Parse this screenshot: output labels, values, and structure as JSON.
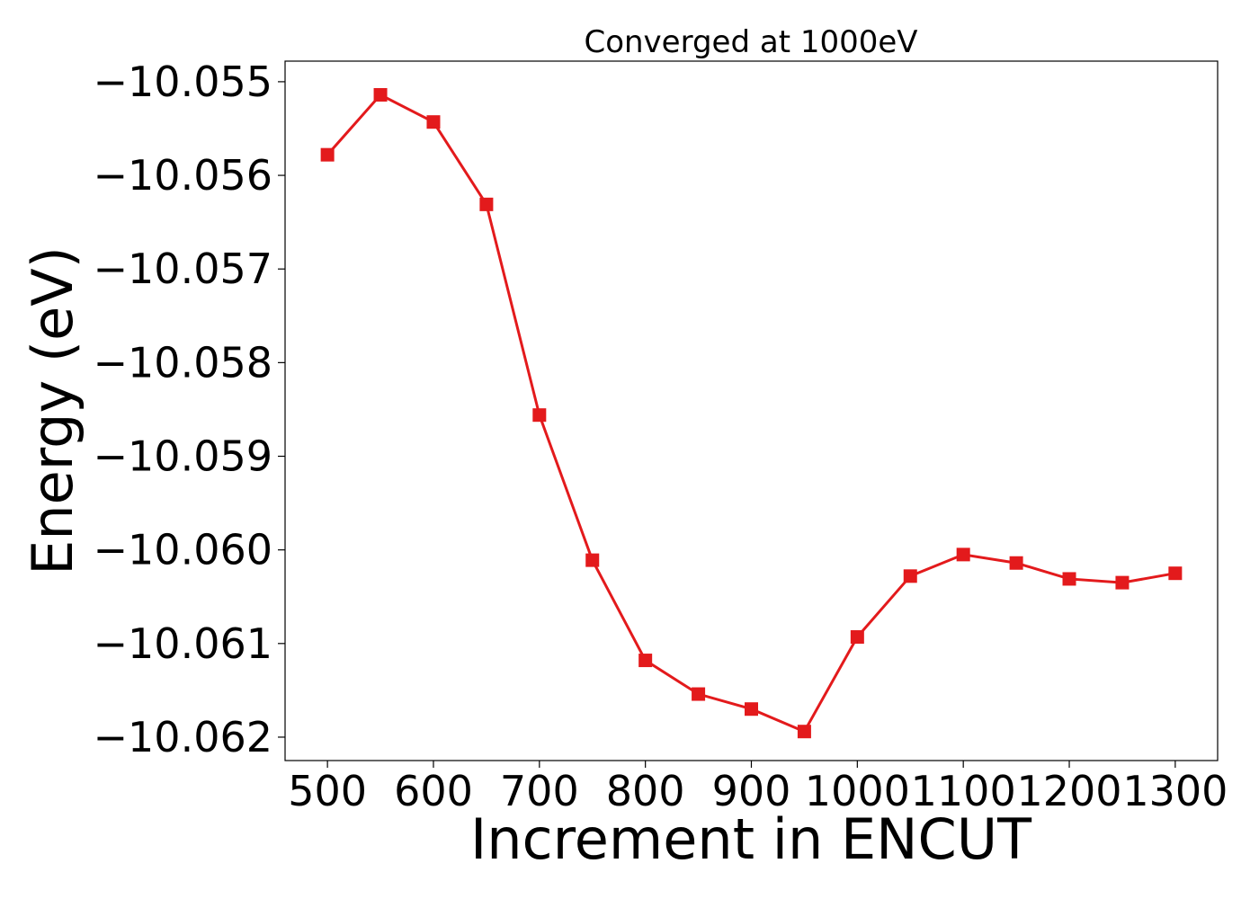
{
  "chart_data": {
    "type": "line",
    "title": "Converged at 1000eV",
    "xlabel": "Increment in ENCUT",
    "ylabel": "Energy (eV)",
    "xlim": [
      460,
      1340
    ],
    "ylim": [
      -10.06225,
      -10.05478
    ],
    "xticks": [
      500,
      600,
      700,
      800,
      900,
      1000,
      1100,
      1200,
      1300
    ],
    "xtick_labels": [
      "500",
      "600",
      "700",
      "800",
      "900",
      "1000",
      "1100",
      "1200",
      "1300"
    ],
    "yticks": [
      -10.055,
      -10.056,
      -10.057,
      -10.058,
      -10.059,
      -10.06,
      -10.061,
      -10.062
    ],
    "ytick_labels": [
      "−10.055",
      "−10.056",
      "−10.057",
      "−10.058",
      "−10.059",
      "−10.060",
      "−10.061",
      "−10.062"
    ],
    "grid": false,
    "series": [
      {
        "color": "#e31a1c",
        "marker": "square",
        "x": [
          500,
          550,
          600,
          650,
          700,
          750,
          800,
          850,
          900,
          950,
          1000,
          1050,
          1100,
          1150,
          1200,
          1250,
          1300
        ],
        "y": [
          -10.05578,
          -10.05514,
          -10.05543,
          -10.05631,
          -10.05856,
          -10.06011,
          -10.06118,
          -10.06154,
          -10.0617,
          -10.06194,
          -10.06093,
          -10.06028,
          -10.06005,
          -10.06014,
          -10.06031,
          -10.06035,
          -10.06025
        ]
      }
    ]
  }
}
